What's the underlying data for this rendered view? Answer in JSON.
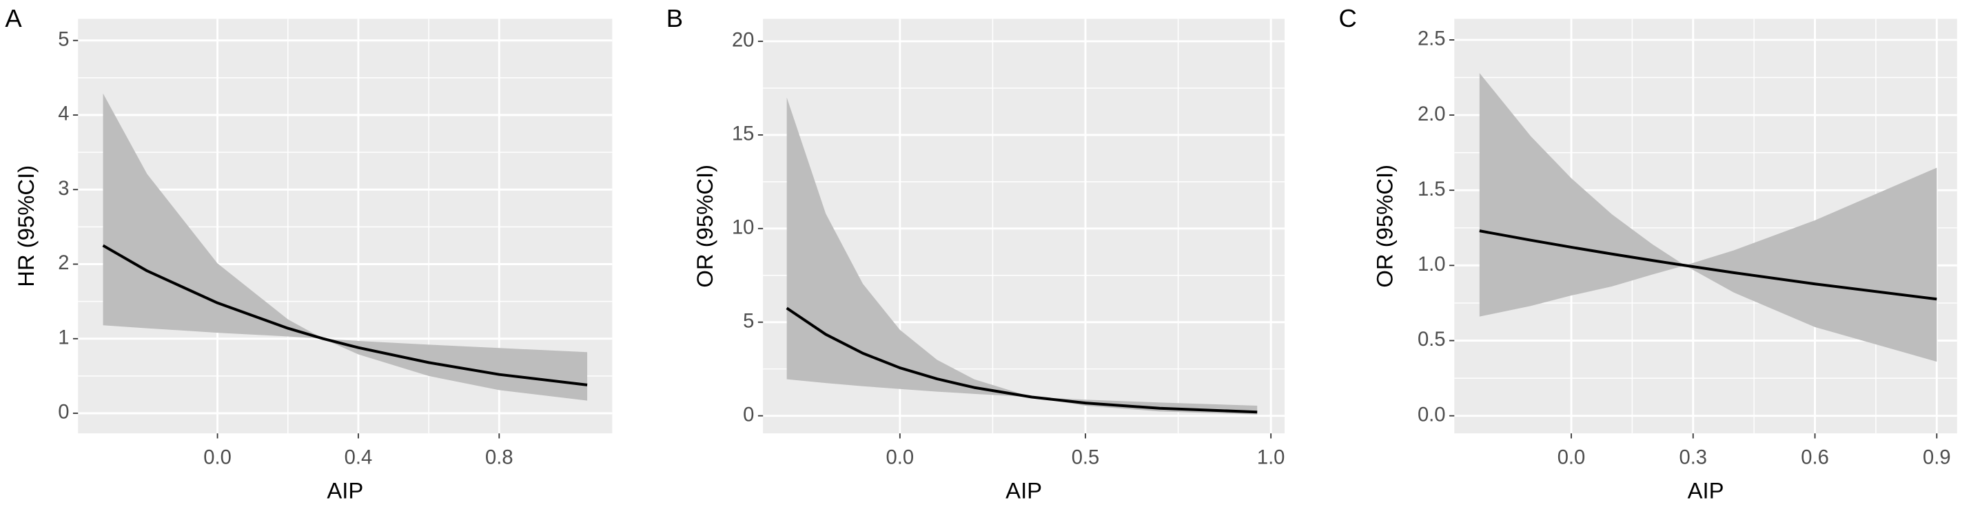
{
  "chart_data": [
    {
      "type": "line",
      "panel_label": "A",
      "x_label": "AIP",
      "y_label": "HR (95%CI)",
      "x": [
        -0.325,
        -0.2,
        0,
        0.2,
        0.3,
        0.4,
        0.6,
        0.8,
        1.05
      ],
      "values": [
        2.25,
        1.91,
        1.48,
        1.14,
        1.0,
        0.88,
        0.68,
        0.52,
        0.38
      ],
      "upper": [
        4.29,
        3.21,
        2.01,
        1.26,
        1.0,
        0.97,
        0.92,
        0.875,
        0.82
      ],
      "lower": [
        1.18,
        1.14,
        1.08,
        1.03,
        1.0,
        0.79,
        0.5,
        0.31,
        0.17
      ],
      "color": "#000000",
      "band_color": "#bdbdbd",
      "xlim": [
        -0.396,
        1.121
      ],
      "xticks": [
        {
          "value": 0,
          "label": "0.0"
        },
        0.4,
        0.8
      ],
      "ylim": [
        -0.27,
        5.29
      ],
      "yticks": [
        0,
        1,
        2,
        3,
        4,
        5
      ],
      "grid": true
    },
    {
      "type": "line",
      "panel_label": "B",
      "x_label": "AIP",
      "y_label": "OR (95%CI)",
      "x": [
        -0.305,
        -0.2,
        -0.1,
        0,
        0.1,
        0.2,
        0.3555,
        0.5,
        0.7,
        0.963
      ],
      "values": [
        5.75,
        4.35,
        3.34,
        2.56,
        1.97,
        1.51,
        1.0,
        0.68,
        0.4,
        0.2
      ],
      "upper": [
        17.0,
        10.8,
        7.05,
        4.59,
        2.99,
        1.95,
        1.0,
        0.86,
        0.71,
        0.54
      ],
      "lower": [
        1.95,
        1.75,
        1.58,
        1.43,
        1.29,
        1.17,
        1.0,
        0.54,
        0.23,
        0.07
      ],
      "color": "#000000",
      "band_color": "#bdbdbd",
      "xlim": [
        -0.369,
        1.037
      ],
      "xticks": [
        {
          "value": 0,
          "label": "0.0"
        },
        0.5,
        {
          "value": 1,
          "label": "1.0"
        }
      ],
      "ylim": [
        -0.94,
        21.2
      ],
      "yticks": [
        0,
        5,
        10,
        15,
        20
      ],
      "grid": true
    },
    {
      "type": "line",
      "panel_label": "C",
      "x_label": "AIP",
      "y_label": "OR (95%CI)",
      "x": [
        -0.226,
        -0.1,
        0,
        0.1,
        0.2,
        0.28,
        0.4,
        0.6,
        0.9
      ],
      "values": [
        1.23,
        1.168,
        1.121,
        1.076,
        1.033,
        1.0,
        0.952,
        0.877,
        0.776
      ],
      "upper": [
        2.28,
        1.86,
        1.58,
        1.34,
        1.14,
        1.0,
        1.1,
        1.3,
        1.65
      ],
      "lower": [
        0.66,
        0.73,
        0.8,
        0.86,
        0.94,
        1.0,
        0.82,
        0.59,
        0.36
      ],
      "color": "#000000",
      "band_color": "#bdbdbd",
      "xlim": [
        -0.288,
        0.95
      ],
      "xticks": [
        {
          "value": 0,
          "label": "0.0"
        },
        0.3,
        0.6,
        0.9
      ],
      "ylim": [
        -0.117,
        2.64
      ],
      "yticks": [
        {
          "value": 0,
          "label": "0.0"
        },
        0.5,
        {
          "value": 1,
          "label": "1.0"
        },
        1.5,
        {
          "value": 2,
          "label": "2.0"
        },
        2.5
      ],
      "grid": true
    }
  ]
}
